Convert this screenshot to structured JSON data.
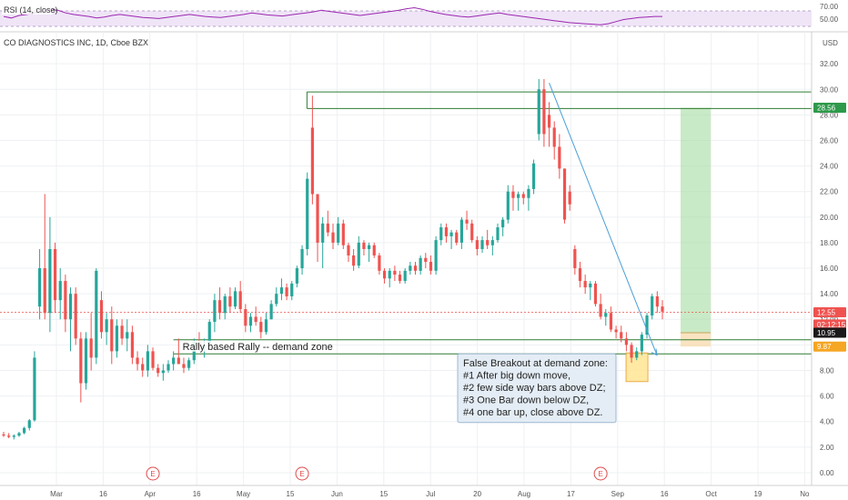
{
  "chart_data": {
    "type": "candlestick",
    "title": "CO DIAGNOSTICS INC, 1D, Cboe BZX",
    "currency": "USD",
    "ylim": [
      -1.0,
      34.5
    ],
    "y_ticks": [
      "0.00",
      "2.00",
      "4.00",
      "6.00",
      "8.00",
      "10.00",
      "12.00",
      "14.00",
      "16.00",
      "18.00",
      "20.00",
      "22.00",
      "24.00",
      "26.00",
      "28.00",
      "30.00",
      "32.00"
    ],
    "x_labels": [
      "Mar",
      "16",
      "Apr",
      "16",
      "May",
      "15",
      "Jun",
      "15",
      "Jul",
      "20",
      "Aug",
      "17",
      "Sep",
      "16",
      "Oct",
      "19",
      "No"
    ],
    "colors": {
      "up": "#26a69a",
      "down": "#ef5350",
      "zone_line": "#2e7d32",
      "arrow": "#4a9fd8",
      "target": "#a5dca0",
      "stop": "#f8dcb0",
      "rsi": "#9c27b0"
    },
    "candles": [
      [
        3.0,
        3.2,
        2.8,
        2.9
      ],
      [
        2.9,
        3.1,
        2.7,
        2.8
      ],
      [
        2.8,
        3.0,
        2.6,
        2.9
      ],
      [
        2.9,
        3.2,
        2.8,
        3.1
      ],
      [
        3.1,
        3.6,
        3.0,
        3.5
      ],
      [
        3.5,
        4.2,
        3.3,
        4.1
      ],
      [
        4.1,
        9.5,
        4.0,
        9.0
      ],
      [
        13.0,
        17.5,
        12.0,
        16.0
      ],
      [
        16.0,
        21.8,
        12.0,
        12.5
      ],
      [
        12.5,
        20.0,
        11.0,
        17.5
      ],
      [
        17.5,
        18.0,
        12.5,
        13.5
      ],
      [
        13.5,
        16.0,
        12.0,
        15.0
      ],
      [
        15.0,
        15.5,
        11.0,
        12.0
      ],
      [
        12.0,
        14.5,
        9.5,
        14.0
      ],
      [
        14.0,
        14.5,
        10.0,
        10.5
      ],
      [
        10.5,
        11.0,
        5.5,
        7.0
      ],
      [
        7.0,
        11.0,
        6.5,
        10.5
      ],
      [
        10.5,
        12.5,
        8.0,
        9.0
      ],
      [
        9.0,
        16.0,
        8.5,
        15.8
      ],
      [
        13.5,
        14.2,
        10.5,
        11.0
      ],
      [
        11.0,
        12.5,
        10.0,
        12.0
      ],
      [
        12.0,
        13.0,
        8.5,
        9.5
      ],
      [
        9.5,
        12.0,
        9.0,
        11.5
      ],
      [
        11.5,
        12.0,
        10.0,
        10.5
      ],
      [
        10.5,
        12.0,
        9.5,
        11.0
      ],
      [
        11.0,
        11.5,
        8.5,
        9.0
      ],
      [
        9.0,
        9.5,
        8.0,
        8.5
      ],
      [
        8.5,
        9.0,
        7.5,
        8.0
      ],
      [
        8.0,
        10.0,
        7.5,
        9.5
      ],
      [
        9.5,
        9.8,
        8.0,
        8.2
      ],
      [
        8.2,
        8.5,
        7.5,
        7.8
      ],
      [
        7.8,
        8.5,
        7.2,
        8.0
      ],
      [
        8.0,
        8.8,
        7.8,
        8.5
      ],
      [
        8.5,
        9.5,
        8.0,
        9.0
      ],
      [
        9.0,
        10.5,
        8.5,
        8.5
      ],
      [
        8.5,
        9.0,
        7.8,
        8.2
      ],
      [
        8.2,
        9.0,
        8.0,
        8.8
      ],
      [
        8.8,
        10.5,
        8.5,
        10.2
      ],
      [
        10.2,
        11.0,
        9.5,
        9.8
      ],
      [
        9.8,
        10.5,
        9.0,
        10.0
      ],
      [
        10.0,
        12.0,
        9.8,
        11.8
      ],
      [
        11.8,
        14.0,
        11.0,
        13.5
      ],
      [
        13.5,
        14.5,
        12.0,
        12.5
      ],
      [
        12.5,
        14.0,
        12.0,
        13.8
      ],
      [
        13.8,
        14.5,
        12.5,
        13.0
      ],
      [
        13.0,
        14.5,
        12.8,
        14.2
      ],
      [
        14.2,
        15.0,
        12.5,
        12.8
      ],
      [
        12.8,
        13.2,
        11.0,
        11.5
      ],
      [
        11.5,
        12.5,
        11.0,
        12.2
      ],
      [
        12.2,
        13.0,
        11.5,
        11.8
      ],
      [
        11.8,
        12.2,
        10.5,
        11.0
      ],
      [
        11.0,
        12.5,
        10.8,
        12.0
      ],
      [
        12.0,
        13.5,
        12.0,
        13.2
      ],
      [
        13.2,
        14.5,
        13.0,
        14.0
      ],
      [
        14.0,
        15.2,
        13.5,
        14.5
      ],
      [
        14.5,
        14.8,
        13.5,
        13.8
      ],
      [
        13.8,
        15.0,
        13.5,
        14.8
      ],
      [
        14.8,
        16.2,
        14.5,
        16.0
      ],
      [
        16.0,
        17.8,
        15.5,
        17.5
      ],
      [
        17.5,
        23.5,
        17.0,
        23.0
      ],
      [
        27.0,
        29.5,
        21.0,
        21.8
      ],
      [
        21.8,
        21.8,
        16.5,
        18.0
      ],
      [
        18.0,
        20.0,
        16.0,
        19.5
      ],
      [
        19.5,
        20.5,
        18.5,
        18.8
      ],
      [
        18.8,
        19.5,
        17.5,
        18.0
      ],
      [
        18.0,
        20.0,
        17.8,
        19.5
      ],
      [
        19.5,
        19.8,
        17.5,
        17.8
      ],
      [
        17.8,
        18.0,
        16.5,
        17.0
      ],
      [
        17.0,
        17.5,
        15.8,
        16.2
      ],
      [
        16.2,
        18.5,
        16.0,
        18.0
      ],
      [
        18.0,
        18.2,
        17.0,
        17.5
      ],
      [
        17.5,
        18.0,
        16.5,
        17.8
      ],
      [
        17.8,
        18.0,
        16.8,
        17.0
      ],
      [
        17.0,
        17.2,
        15.5,
        15.8
      ],
      [
        15.8,
        16.0,
        14.8,
        15.2
      ],
      [
        15.2,
        16.0,
        14.5,
        15.8
      ],
      [
        15.8,
        16.2,
        15.0,
        15.5
      ],
      [
        15.5,
        15.8,
        14.8,
        15.0
      ],
      [
        15.0,
        16.0,
        14.8,
        15.8
      ],
      [
        15.8,
        16.5,
        15.5,
        16.2
      ],
      [
        16.2,
        16.5,
        15.5,
        15.8
      ],
      [
        15.8,
        17.0,
        15.5,
        16.8
      ],
      [
        16.8,
        17.2,
        16.0,
        16.5
      ],
      [
        16.5,
        17.0,
        15.5,
        15.8
      ],
      [
        15.8,
        18.5,
        15.5,
        18.2
      ],
      [
        18.2,
        19.5,
        17.8,
        19.2
      ],
      [
        19.2,
        19.5,
        18.0,
        18.5
      ],
      [
        18.5,
        19.0,
        17.5,
        18.8
      ],
      [
        18.8,
        19.0,
        17.8,
        18.0
      ],
      [
        18.0,
        20.0,
        17.5,
        19.8
      ],
      [
        19.8,
        20.5,
        19.0,
        19.5
      ],
      [
        19.5,
        19.8,
        18.0,
        18.2
      ],
      [
        18.2,
        18.5,
        17.0,
        17.5
      ],
      [
        17.5,
        18.5,
        17.2,
        18.2
      ],
      [
        18.2,
        19.0,
        17.5,
        17.8
      ],
      [
        17.8,
        18.5,
        17.0,
        18.2
      ],
      [
        18.2,
        19.5,
        18.0,
        19.2
      ],
      [
        19.2,
        20.0,
        18.5,
        19.8
      ],
      [
        19.8,
        22.5,
        19.5,
        22.0
      ],
      [
        22.0,
        22.5,
        20.5,
        21.5
      ],
      [
        21.5,
        22.0,
        20.5,
        21.8
      ],
      [
        21.8,
        22.0,
        21.0,
        21.5
      ],
      [
        21.5,
        22.5,
        20.5,
        22.2
      ],
      [
        22.2,
        24.5,
        21.8,
        24.2
      ],
      [
        26.5,
        30.8,
        26.0,
        30.0
      ],
      [
        30.0,
        30.8,
        25.5,
        26.5
      ],
      [
        28.0,
        29.0,
        25.5,
        27.0
      ],
      [
        27.0,
        27.5,
        24.5,
        25.5
      ],
      [
        25.5,
        26.5,
        23.0,
        23.8
      ],
      [
        23.8,
        23.8,
        19.5,
        19.8
      ],
      [
        22.0,
        22.5,
        20.5,
        21.0
      ],
      [
        17.5,
        17.8,
        15.5,
        16.0
      ],
      [
        16.0,
        16.5,
        14.5,
        15.0
      ],
      [
        15.0,
        15.5,
        14.0,
        14.5
      ],
      [
        14.5,
        15.0,
        13.5,
        14.8
      ],
      [
        14.8,
        15.0,
        13.0,
        13.2
      ],
      [
        13.2,
        14.0,
        12.0,
        12.2
      ],
      [
        12.2,
        12.8,
        11.5,
        12.5
      ],
      [
        12.5,
        13.0,
        11.0,
        11.2
      ],
      [
        11.2,
        11.5,
        10.5,
        11.0
      ],
      [
        11.0,
        11.5,
        10.2,
        10.5
      ],
      [
        10.5,
        11.0,
        9.5,
        10.0
      ],
      [
        10.0,
        10.2,
        8.6,
        9.0
      ],
      [
        9.0,
        9.8,
        8.8,
        9.5
      ],
      [
        9.5,
        11.0,
        9.2,
        10.8
      ],
      [
        10.8,
        12.5,
        10.5,
        12.3
      ],
      [
        12.3,
        14.0,
        12.0,
        13.8
      ],
      [
        13.8,
        14.2,
        12.5,
        13.0
      ],
      [
        13.0,
        13.5,
        12.0,
        12.6
      ]
    ],
    "ohlc_order": [
      "open",
      "high",
      "low",
      "close"
    ],
    "rsi": {
      "label": "RSI (14, close)",
      "value": "50.00",
      "ticks": [
        "70.00",
        "50.00"
      ],
      "values": [
        48,
        45,
        50,
        52,
        55,
        58,
        62,
        60,
        55,
        52,
        50,
        48,
        45,
        47,
        50,
        52,
        50,
        48,
        46,
        45,
        44,
        46,
        48,
        50,
        52,
        50,
        48,
        47,
        46,
        48,
        50,
        52,
        55,
        53,
        51,
        50,
        49,
        51,
        53,
        55,
        57,
        60,
        58,
        56,
        54,
        52,
        50,
        52,
        54,
        56,
        58,
        60,
        63,
        65,
        62,
        58,
        55,
        52,
        50,
        48,
        47,
        49,
        51,
        53,
        55,
        52,
        50,
        48,
        46,
        44,
        42,
        40,
        38,
        36,
        35,
        34,
        33,
        32,
        34,
        38,
        42,
        44,
        46,
        47,
        48,
        48
      ]
    },
    "price_tags": [
      {
        "label": "28.56",
        "value": 28.56,
        "color": "#2e9a4a"
      },
      {
        "label": "12.55",
        "value": 12.55,
        "color": "#ef5350"
      },
      {
        "label": "02:12:15",
        "value": 11.6,
        "color": "#ef5350"
      },
      {
        "label": "10.95",
        "value": 10.95,
        "color": "#1a1a1a"
      },
      {
        "label": "9.87",
        "value": 9.87,
        "color": "#f5a623"
      }
    ],
    "earnings_markers": [
      "E",
      "E",
      "E"
    ],
    "zones": {
      "demand_high": 10.4,
      "demand_low": 9.3,
      "resistance_high": 29.8,
      "resistance_low": 28.5,
      "target_high": 28.56,
      "entry": 10.95,
      "stop": 9.87
    },
    "annotations": {
      "zone_label": "Rally based Rally -- demand zone",
      "note_lines": [
        "False Breakout at demand zone:",
        "#1 After big down move,",
        "#2 few side way bars above DZ;",
        "#3 One Bar down below DZ,",
        "#4 one bar up, close above DZ."
      ]
    }
  }
}
